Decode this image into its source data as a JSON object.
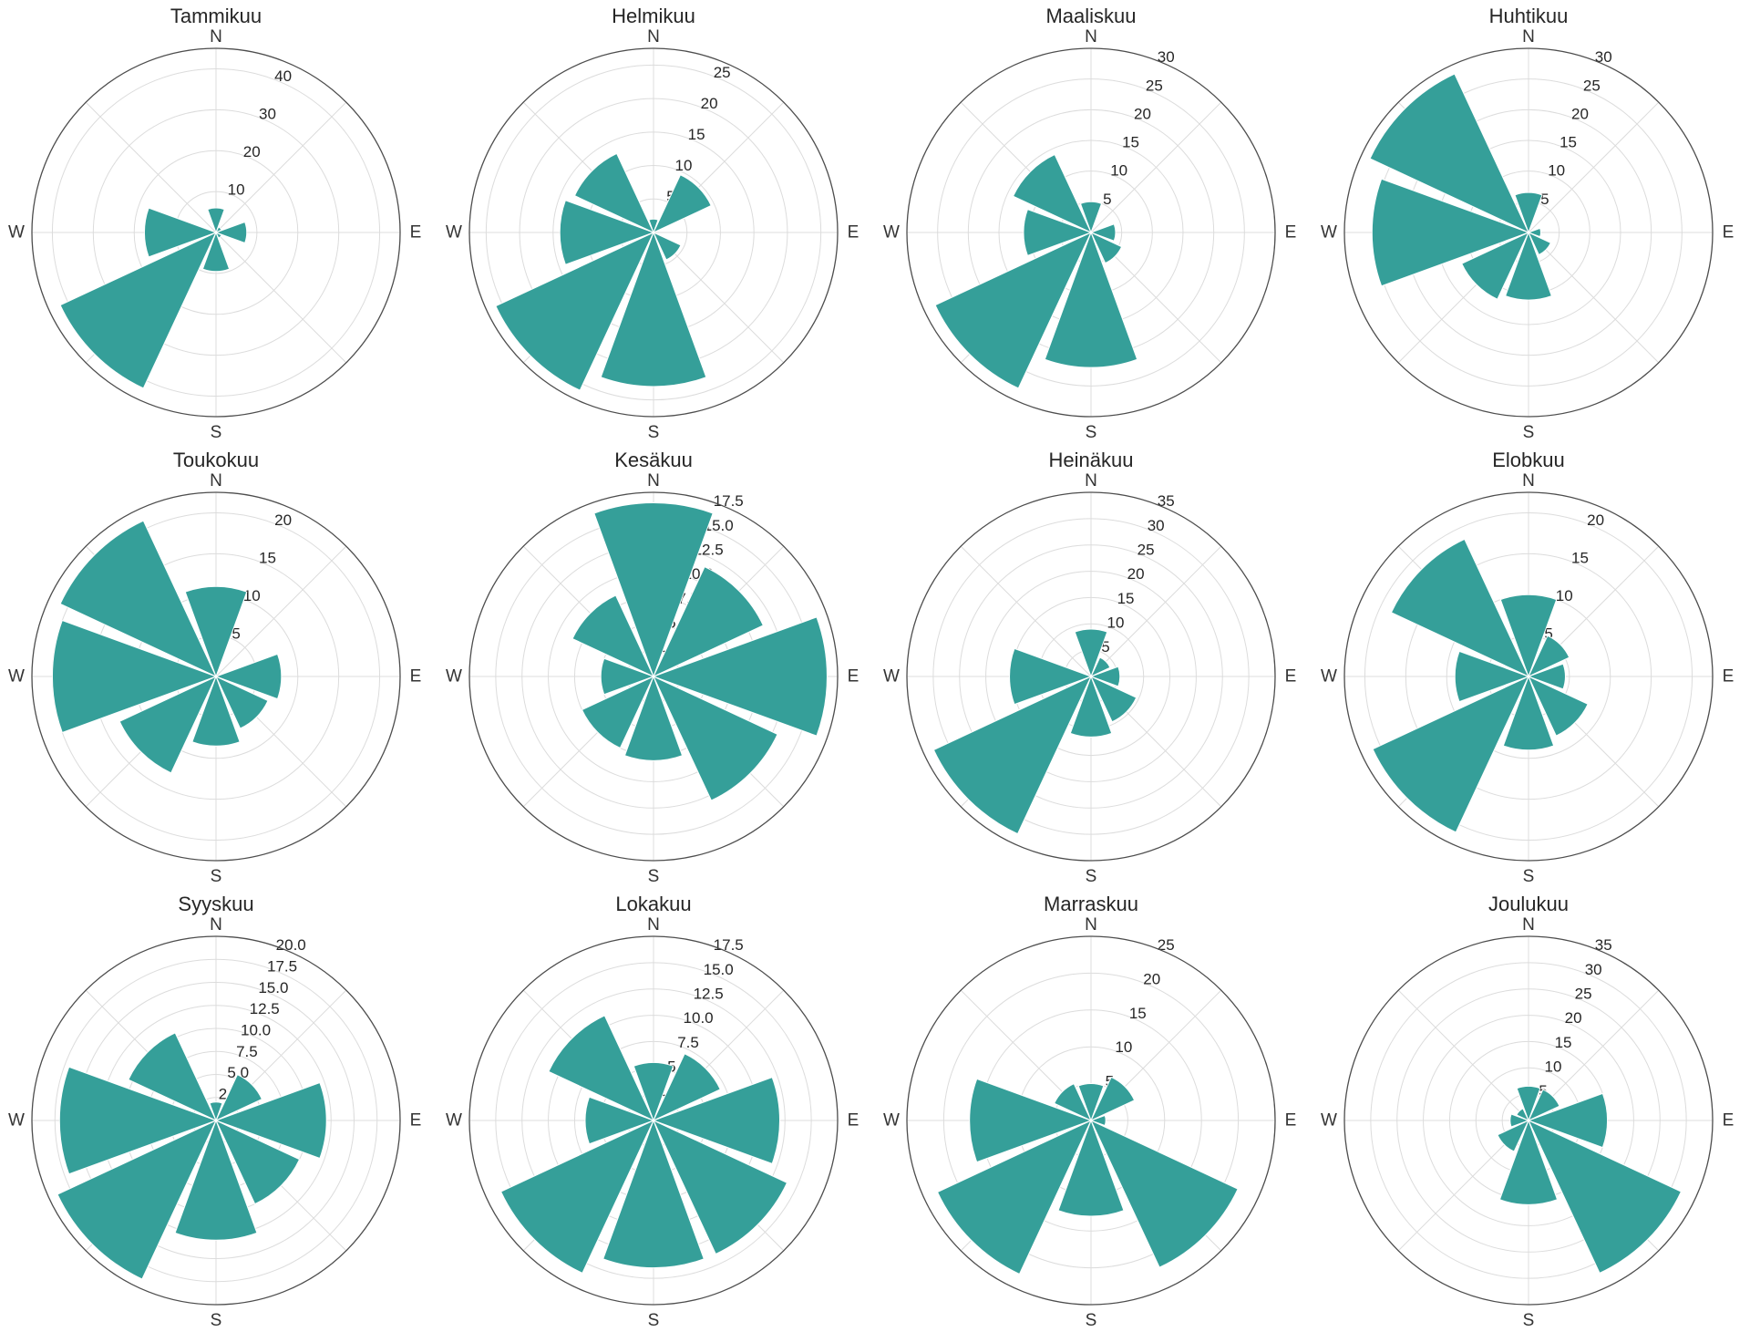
{
  "style": {
    "bar_color": "#359f99",
    "bar_edge_color": "#ffffff",
    "grid_color": "#dcdcdc",
    "spine_color": "#4d4d4d",
    "text_color": "#262626",
    "compass_color": "#333333",
    "background": "#ffffff",
    "bar_width_deg": 40,
    "rlabel_angle_deg": 22.5
  },
  "chart_data": [
    {
      "type": "bar",
      "polar": true,
      "title": "Tammikuu",
      "categories": [
        "N",
        "NE",
        "E",
        "SE",
        "S",
        "SW",
        "W",
        "NW"
      ],
      "values": [
        6,
        1.5,
        7.5,
        1.5,
        9.5,
        42,
        17.5,
        0
      ],
      "rticks": [
        10,
        20,
        30,
        40
      ],
      "rtick_labels": [
        "10",
        "20",
        "30",
        "40"
      ],
      "rmax": 45,
      "compass_labels": {
        "n": "N",
        "e": "E",
        "s": "S",
        "w": "W"
      }
    },
    {
      "type": "bar",
      "polar": true,
      "title": "Helmikuu",
      "categories": [
        "N",
        "NE",
        "E",
        "SE",
        "S",
        "SW",
        "W",
        "NW"
      ],
      "values": [
        2,
        9.5,
        0,
        4.5,
        23,
        26,
        14,
        13
      ],
      "rticks": [
        5,
        10,
        15,
        20,
        25
      ],
      "rtick_labels": [
        "5",
        "10",
        "15",
        "20",
        "25"
      ],
      "rmax": 27.5,
      "compass_labels": {
        "n": "N",
        "e": "E",
        "s": "S",
        "w": "W"
      }
    },
    {
      "type": "bar",
      "polar": true,
      "title": "Maaliskuu",
      "categories": [
        "N",
        "NE",
        "E",
        "SE",
        "S",
        "SW",
        "W",
        "NW"
      ],
      "values": [
        5,
        0,
        4,
        5.5,
        22,
        28,
        11,
        14
      ],
      "rticks": [
        5,
        10,
        15,
        20,
        25,
        30
      ],
      "rtick_labels": [
        "5",
        "10",
        "15",
        "20",
        "25",
        "30"
      ],
      "rmax": 30,
      "compass_labels": {
        "n": "N",
        "e": "E",
        "s": "S",
        "w": "W"
      }
    },
    {
      "type": "bar",
      "polar": true,
      "title": "Huhtikuu",
      "categories": [
        "N",
        "NE",
        "E",
        "SE",
        "S",
        "SW",
        "W",
        "NW"
      ],
      "values": [
        6.5,
        0,
        2,
        4,
        11,
        12,
        25.5,
        28.5
      ],
      "rticks": [
        5,
        10,
        15,
        20,
        25,
        30
      ],
      "rtick_labels": [
        "5",
        "10",
        "15",
        "20",
        "25",
        "30"
      ],
      "rmax": 30,
      "compass_labels": {
        "n": "N",
        "e": "E",
        "s": "S",
        "w": "W"
      }
    },
    {
      "type": "bar",
      "polar": true,
      "title": "Toukokuu",
      "categories": [
        "N",
        "NE",
        "E",
        "SE",
        "S",
        "SW",
        "W",
        "NW"
      ],
      "values": [
        11,
        0,
        8,
        7,
        8.5,
        13,
        20,
        21
      ],
      "rticks": [
        5,
        10,
        15,
        20
      ],
      "rtick_labels": [
        "5",
        "10",
        "15",
        "20"
      ],
      "rmax": 22.5,
      "compass_labels": {
        "n": "N",
        "e": "E",
        "s": "S",
        "w": "W"
      }
    },
    {
      "type": "bar",
      "polar": true,
      "title": "Kesäkuu",
      "categories": [
        "N",
        "NE",
        "E",
        "SE",
        "S",
        "SW",
        "W",
        "NW"
      ],
      "values": [
        16.5,
        11.5,
        16.5,
        13,
        8,
        7.5,
        5,
        8.5
      ],
      "rticks": [
        2.5,
        5,
        7.5,
        10,
        12.5,
        15,
        17.5
      ],
      "rtick_labels": [
        "2.5",
        "5.0",
        "7.5",
        "10.0",
        "12.5",
        "15.0",
        "17.5"
      ],
      "rmax": 17.5,
      "compass_labels": {
        "n": "N",
        "e": "E",
        "s": "S",
        "w": "W"
      }
    },
    {
      "type": "bar",
      "polar": true,
      "title": "Heinäkuu",
      "categories": [
        "N",
        "NE",
        "E",
        "SE",
        "S",
        "SW",
        "W",
        "NW"
      ],
      "values": [
        9,
        4,
        5.5,
        9.5,
        11.5,
        33,
        15.5,
        0
      ],
      "rticks": [
        5,
        10,
        15,
        20,
        25,
        30,
        35
      ],
      "rtick_labels": [
        "5",
        "10",
        "15",
        "20",
        "25",
        "30",
        "35"
      ],
      "rmax": 35,
      "compass_labels": {
        "n": "N",
        "e": "E",
        "s": "S",
        "w": "W"
      }
    },
    {
      "type": "bar",
      "polar": true,
      "title": "Elobkuu",
      "categories": [
        "N",
        "NE",
        "E",
        "SE",
        "S",
        "SW",
        "W",
        "NW"
      ],
      "values": [
        10,
        5.5,
        4.5,
        8,
        9,
        21,
        9,
        18.5
      ],
      "rticks": [
        5,
        10,
        15,
        20
      ],
      "rtick_labels": [
        "5",
        "10",
        "15",
        "20"
      ],
      "rmax": 22.5,
      "compass_labels": {
        "n": "N",
        "e": "E",
        "s": "S",
        "w": "W"
      }
    },
    {
      "type": "bar",
      "polar": true,
      "title": "Syyskuu",
      "categories": [
        "N",
        "NE",
        "E",
        "SE",
        "S",
        "SW",
        "W",
        "NW"
      ],
      "values": [
        2,
        5.5,
        12,
        10,
        13,
        19,
        17,
        10.5
      ],
      "rticks": [
        2.5,
        5,
        7.5,
        10,
        12.5,
        15,
        17.5,
        20
      ],
      "rtick_labels": [
        "2.5",
        "5.0",
        "7.5",
        "10.0",
        "12.5",
        "15.0",
        "17.5",
        "20.0"
      ],
      "rmax": 20,
      "compass_labels": {
        "n": "N",
        "e": "E",
        "s": "S",
        "w": "W"
      }
    },
    {
      "type": "bar",
      "polar": true,
      "title": "Lokakuu",
      "categories": [
        "N",
        "NE",
        "E",
        "SE",
        "S",
        "SW",
        "W",
        "NW"
      ],
      "values": [
        5.5,
        7,
        12,
        14,
        14,
        16,
        6.5,
        11
      ],
      "rticks": [
        2.5,
        5,
        7.5,
        10,
        12.5,
        15,
        17.5
      ],
      "rtick_labels": [
        "2.5",
        "5.0",
        "7.5",
        "10.0",
        "12.5",
        "15.0",
        "17.5"
      ],
      "rmax": 17.5,
      "compass_labels": {
        "n": "N",
        "e": "E",
        "s": "S",
        "w": "W"
      }
    },
    {
      "type": "bar",
      "polar": true,
      "title": "Marraskuu",
      "categories": [
        "N",
        "NE",
        "E",
        "SE",
        "S",
        "SW",
        "W",
        "NW"
      ],
      "values": [
        5,
        6.5,
        2,
        22,
        13,
        23,
        16.5,
        5.5
      ],
      "rticks": [
        5,
        10,
        15,
        20,
        25
      ],
      "rtick_labels": [
        "5",
        "10",
        "15",
        "20",
        "25"
      ],
      "rmax": 25,
      "compass_labels": {
        "n": "N",
        "e": "E",
        "s": "S",
        "w": "W"
      }
    },
    {
      "type": "bar",
      "polar": true,
      "title": "Joulukuu",
      "categories": [
        "N",
        "NE",
        "E",
        "SE",
        "S",
        "SW",
        "W",
        "NW"
      ],
      "values": [
        6.5,
        6.5,
        15,
        32,
        16,
        6.5,
        3.5,
        2.5
      ],
      "rticks": [
        5,
        10,
        15,
        20,
        25,
        30,
        35
      ],
      "rtick_labels": [
        "5",
        "10",
        "15",
        "20",
        "25",
        "30",
        "35"
      ],
      "rmax": 35,
      "compass_labels": {
        "n": "N",
        "e": "E",
        "s": "S",
        "w": "W"
      }
    }
  ]
}
